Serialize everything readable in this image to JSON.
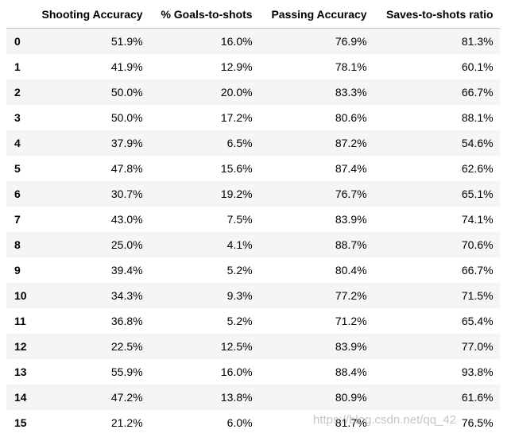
{
  "table": {
    "headers": [
      "Shooting Accuracy",
      "% Goals-to-shots",
      "Passing Accuracy",
      "Saves-to-shots ratio"
    ],
    "rows": [
      [
        "0",
        "51.9%",
        "16.0%",
        "76.9%",
        "81.3%"
      ],
      [
        "1",
        "41.9%",
        "12.9%",
        "78.1%",
        "60.1%"
      ],
      [
        "2",
        "50.0%",
        "20.0%",
        "83.3%",
        "66.7%"
      ],
      [
        "3",
        "50.0%",
        "17.2%",
        "80.6%",
        "88.1%"
      ],
      [
        "4",
        "37.9%",
        "6.5%",
        "87.2%",
        "54.6%"
      ],
      [
        "5",
        "47.8%",
        "15.6%",
        "87.4%",
        "62.6%"
      ],
      [
        "6",
        "30.7%",
        "19.2%",
        "76.7%",
        "65.1%"
      ],
      [
        "7",
        "43.0%",
        "7.5%",
        "83.9%",
        "74.1%"
      ],
      [
        "8",
        "25.0%",
        "4.1%",
        "88.7%",
        "70.6%"
      ],
      [
        "9",
        "39.4%",
        "5.2%",
        "80.4%",
        "66.7%"
      ],
      [
        "10",
        "34.3%",
        "9.3%",
        "77.2%",
        "71.5%"
      ],
      [
        "11",
        "36.8%",
        "5.2%",
        "71.2%",
        "65.4%"
      ],
      [
        "12",
        "22.5%",
        "12.5%",
        "83.9%",
        "77.0%"
      ],
      [
        "13",
        "55.9%",
        "16.0%",
        "88.4%",
        "93.8%"
      ],
      [
        "14",
        "47.2%",
        "13.8%",
        "80.9%",
        "61.6%"
      ],
      [
        "15",
        "21.2%",
        "6.0%",
        "81.7%",
        "76.5%"
      ]
    ]
  },
  "watermark": "https://blog.csdn.net/qq_42"
}
